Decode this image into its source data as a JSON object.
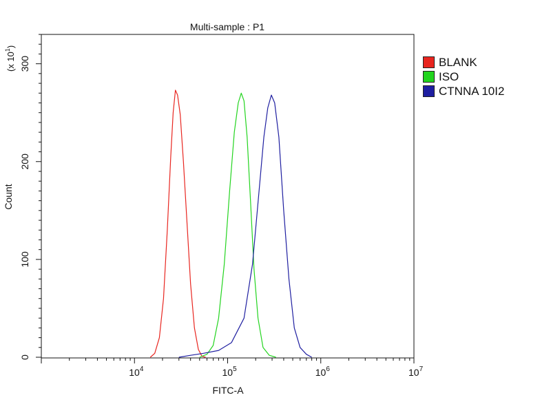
{
  "chart_data": {
    "type": "line",
    "title": "Multi-sample : P1",
    "xlabel": "FITC-A",
    "ylabel": "Count",
    "y_multiplier_label": "(x 10",
    "y_multiplier_exp": "1",
    "x_scale": "log",
    "xlim": [
      1000,
      10000000
    ],
    "ylim": [
      0,
      330
    ],
    "x_ticks": [
      {
        "value": 10000,
        "base": "10",
        "exp": "4"
      },
      {
        "value": 100000,
        "base": "10",
        "exp": "5"
      },
      {
        "value": 1000000,
        "base": "10",
        "exp": "6"
      },
      {
        "value": 10000000,
        "base": "10",
        "exp": "7"
      }
    ],
    "y_ticks": [
      {
        "value": 0,
        "label": "0"
      },
      {
        "value": 100,
        "label": "100"
      },
      {
        "value": 200,
        "label": "200"
      },
      {
        "value": 300,
        "label": "300"
      }
    ],
    "legend_position": "right",
    "grid": false,
    "series": [
      {
        "name": "BLANK",
        "color": "#e8251f",
        "points": [
          [
            14800,
            0
          ],
          [
            16500,
            4
          ],
          [
            18500,
            20
          ],
          [
            20500,
            60
          ],
          [
            22500,
            130
          ],
          [
            24500,
            205
          ],
          [
            26000,
            250
          ],
          [
            27500,
            273
          ],
          [
            29000,
            268
          ],
          [
            31000,
            248
          ],
          [
            33500,
            200
          ],
          [
            36500,
            140
          ],
          [
            40000,
            75
          ],
          [
            44000,
            30
          ],
          [
            48500,
            8
          ],
          [
            53000,
            1
          ],
          [
            58000,
            0
          ]
        ]
      },
      {
        "name": "ISO",
        "color": "#22d41e",
        "points": [
          [
            50000,
            0
          ],
          [
            60000,
            3
          ],
          [
            70000,
            12
          ],
          [
            80000,
            40
          ],
          [
            92000,
            95
          ],
          [
            105000,
            170
          ],
          [
            118000,
            230
          ],
          [
            130000,
            260
          ],
          [
            140000,
            270
          ],
          [
            150000,
            262
          ],
          [
            162000,
            225
          ],
          [
            176000,
            160
          ],
          [
            192000,
            90
          ],
          [
            212000,
            40
          ],
          [
            240000,
            10
          ],
          [
            280000,
            2
          ],
          [
            330000,
            0
          ]
        ]
      },
      {
        "name": "CTNNA 10I2",
        "color": "#1e1ea0",
        "points": [
          [
            30000,
            0
          ],
          [
            40000,
            2
          ],
          [
            55000,
            4
          ],
          [
            80000,
            7
          ],
          [
            110000,
            15
          ],
          [
            150000,
            40
          ],
          [
            185000,
            95
          ],
          [
            215000,
            165
          ],
          [
            245000,
            225
          ],
          [
            270000,
            255
          ],
          [
            295000,
            268
          ],
          [
            320000,
            260
          ],
          [
            355000,
            225
          ],
          [
            400000,
            150
          ],
          [
            455000,
            80
          ],
          [
            520000,
            30
          ],
          [
            600000,
            10
          ],
          [
            700000,
            3
          ],
          [
            800000,
            0
          ]
        ]
      }
    ]
  }
}
